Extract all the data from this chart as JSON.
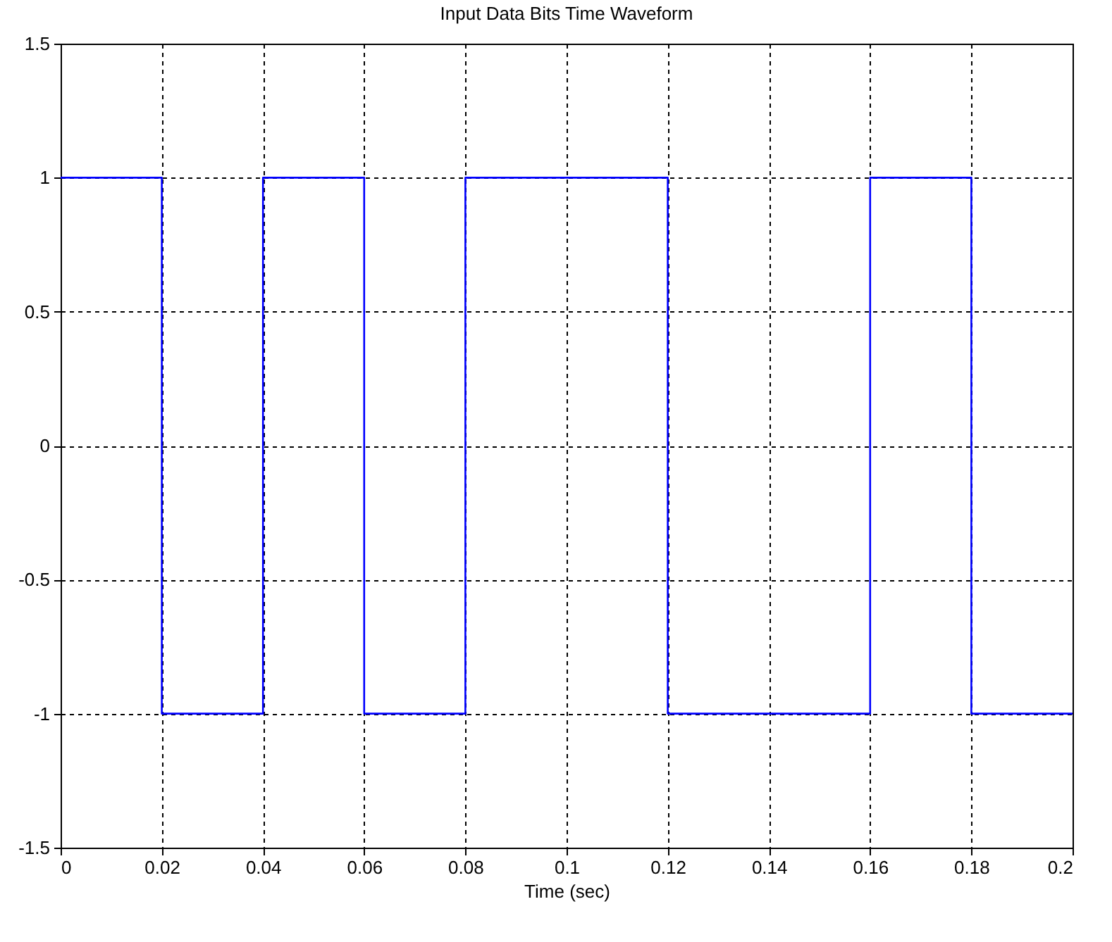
{
  "chart_data": {
    "type": "step",
    "title": "Input Data Bits Time Waveform",
    "xlabel": "Time (sec)",
    "x": [
      0,
      0.02,
      0.04,
      0.06,
      0.08,
      0.1,
      0.12,
      0.14,
      0.16,
      0.18,
      0.2
    ],
    "series": [
      {
        "color": "#0000ff",
        "values": [
          1,
          -1,
          1,
          -1,
          1,
          1,
          -1,
          -1,
          1,
          -1,
          -1
        ]
      }
    ],
    "xlim": [
      0,
      0.2
    ],
    "xticks": [
      0,
      0.02,
      0.04,
      0.06,
      0.08,
      0.1,
      0.12,
      0.14,
      0.16,
      0.18,
      0.2
    ],
    "ylim": [
      -1.5,
      1.5
    ],
    "yticks": [
      -1.5,
      -1,
      -0.5,
      0,
      0.5,
      1,
      1.5
    ],
    "grid": true
  }
}
